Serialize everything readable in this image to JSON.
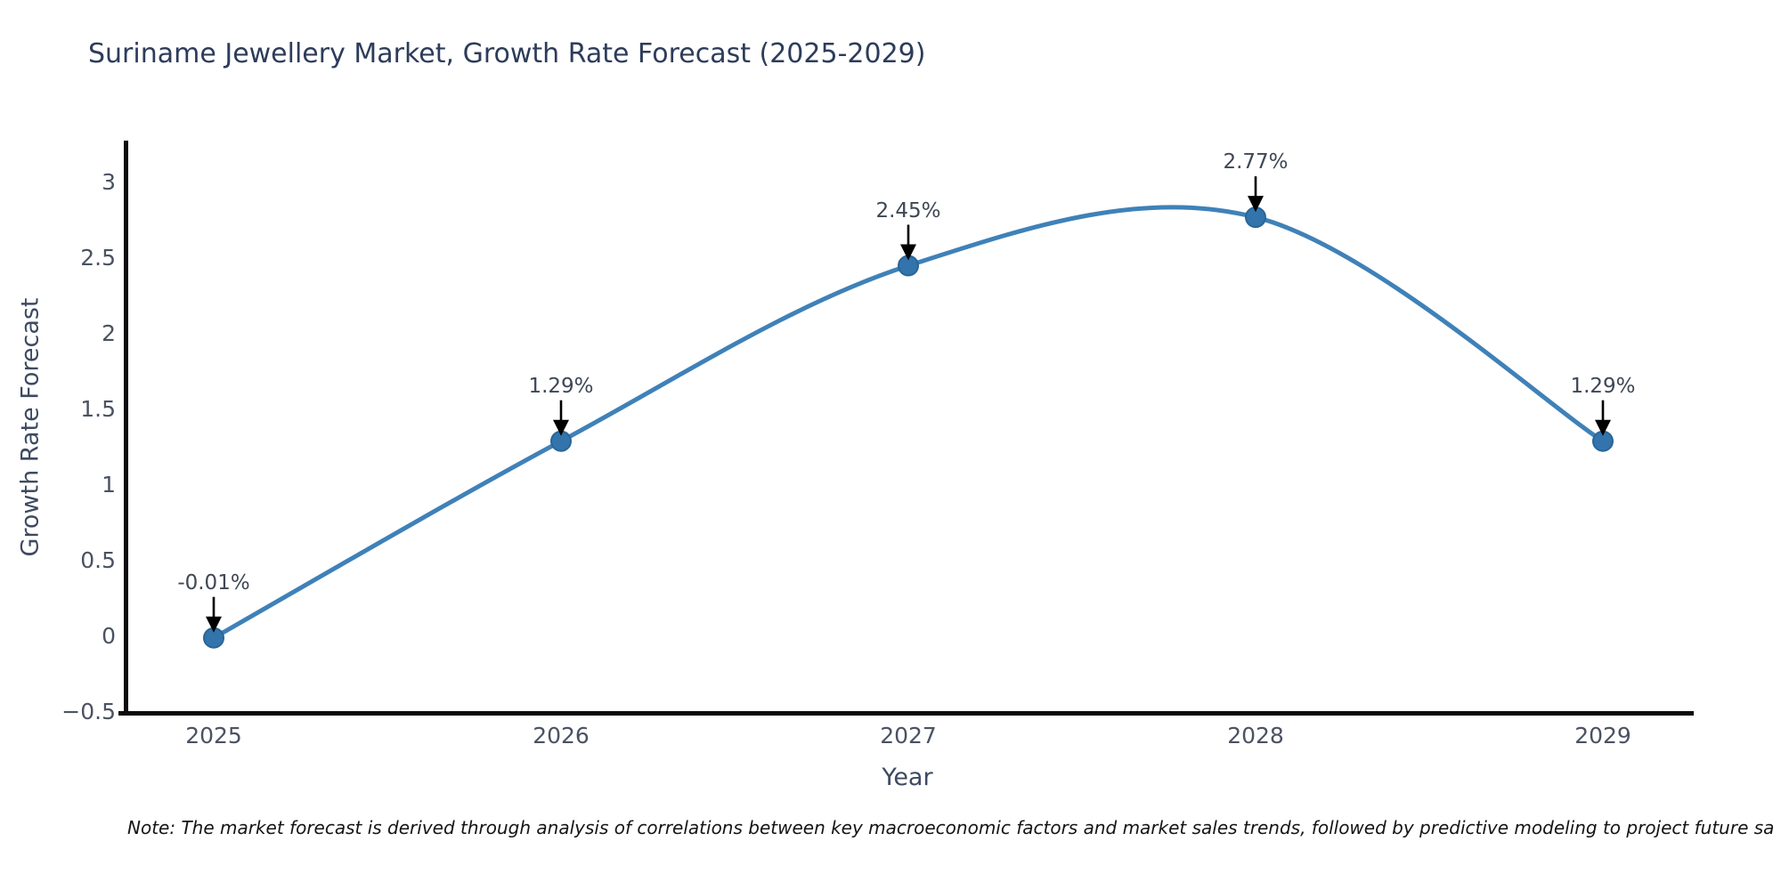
{
  "chart_data": {
    "type": "line",
    "title": "Suriname Jewellery Market, Growth Rate Forecast (2025-2029)",
    "xlabel": "Year",
    "ylabel": "Growth Rate Forecast",
    "x": [
      2025,
      2026,
      2027,
      2028,
      2029
    ],
    "series": [
      {
        "name": "Growth Rate Forecast",
        "values": [
          -0.01,
          1.29,
          2.45,
          2.77,
          1.29
        ]
      }
    ],
    "point_labels": [
      "-0.01%",
      "1.29%",
      "2.45%",
      "2.77%",
      "1.29%"
    ],
    "ylim": [
      -0.56,
      3.26
    ],
    "yticks": [
      {
        "v": 3,
        "label": "3"
      },
      {
        "v": 2.5,
        "label": "2.5"
      },
      {
        "v": 2,
        "label": "2"
      },
      {
        "v": 1.5,
        "label": "1.5"
      },
      {
        "v": 1,
        "label": "1"
      },
      {
        "v": 0.5,
        "label": "0.5"
      },
      {
        "v": 0,
        "label": "0"
      },
      {
        "v": -0.5,
        "label": "−0.5"
      }
    ],
    "xticks": [
      {
        "v": 2025,
        "label": "2025"
      },
      {
        "v": 2026,
        "label": "2026"
      },
      {
        "v": 2027,
        "label": "2027"
      },
      {
        "v": 2028,
        "label": "2028"
      },
      {
        "v": 2029,
        "label": "2029"
      }
    ],
    "grid": false,
    "legend": "none",
    "curve": "spline",
    "colors": {
      "line": "#3f81b8",
      "marker_fill": "#3274ab",
      "marker_edge": "#2a6697",
      "axis": "#0c0c0c",
      "title_text": "#2d3c5a",
      "tick_text": "#4a5262",
      "annotation_text": "#3e4755",
      "arrow": "#000000"
    },
    "note": "Note: The market forecast is derived through analysis of correlations between key macroeconomic factors and market sales trends, followed by predictive modeling to project future sa"
  }
}
